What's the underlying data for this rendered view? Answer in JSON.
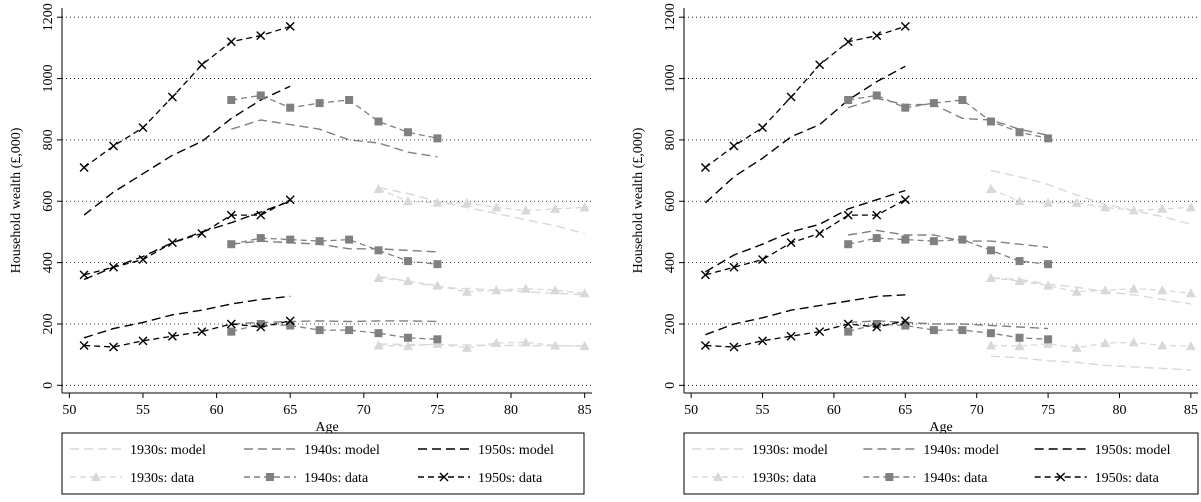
{
  "chart_data": [
    {
      "type": "line",
      "xlabel": "Age",
      "ylabel": "Household wealth (£,000)",
      "xlim": [
        49.5,
        85.5
      ],
      "ylim": [
        -25,
        1230
      ],
      "x_ticks": [
        50,
        55,
        60,
        65,
        70,
        75,
        80,
        85
      ],
      "y_ticks": [
        0,
        200,
        400,
        600,
        800,
        1000,
        1200
      ],
      "grid": "horizontal-dotted",
      "legend_position": "bottom",
      "series": [
        {
          "name": "1930s: model",
          "color": "#d8d8d8",
          "style": "model",
          "group": "low",
          "x": [
            71,
            73,
            75,
            77,
            79,
            81,
            83,
            85
          ],
          "y": [
            135,
            133,
            132,
            131,
            130,
            130,
            129,
            128
          ]
        },
        {
          "name": "1930s: model",
          "color": "#d8d8d8",
          "style": "model",
          "group": "mid",
          "x": [
            71,
            73,
            75,
            77,
            79,
            81,
            83,
            85
          ],
          "y": [
            355,
            340,
            320,
            315,
            310,
            305,
            300,
            295
          ]
        },
        {
          "name": "1930s: model",
          "color": "#d8d8d8",
          "style": "model",
          "group": "high",
          "x": [
            71,
            73,
            75,
            77,
            79,
            81,
            83,
            85
          ],
          "y": [
            645,
            625,
            600,
            580,
            560,
            540,
            520,
            495
          ]
        },
        {
          "name": "1940s: model",
          "color": "#808080",
          "style": "model",
          "group": "low",
          "x": [
            61,
            63,
            65,
            67,
            69,
            71,
            73,
            75
          ],
          "y": [
            200,
            205,
            208,
            210,
            208,
            210,
            210,
            208
          ]
        },
        {
          "name": "1940s: model",
          "color": "#808080",
          "style": "model",
          "group": "mid",
          "x": [
            61,
            63,
            65,
            67,
            69,
            71,
            73,
            75
          ],
          "y": [
            460,
            470,
            465,
            460,
            445,
            445,
            440,
            435
          ]
        },
        {
          "name": "1940s: model",
          "color": "#808080",
          "style": "model",
          "group": "high",
          "x": [
            61,
            63,
            65,
            67,
            69,
            71,
            73,
            75
          ],
          "y": [
            835,
            865,
            850,
            835,
            800,
            790,
            760,
            745
          ]
        },
        {
          "name": "1950s: model",
          "color": "#000000",
          "style": "model",
          "group": "low",
          "x": [
            51,
            53,
            55,
            57,
            59,
            61,
            63,
            65
          ],
          "y": [
            155,
            185,
            205,
            230,
            245,
            265,
            280,
            290
          ]
        },
        {
          "name": "1950s: model",
          "color": "#000000",
          "style": "model",
          "group": "mid",
          "x": [
            51,
            53,
            55,
            57,
            59,
            61,
            63,
            65
          ],
          "y": [
            345,
            385,
            420,
            465,
            500,
            530,
            565,
            600
          ]
        },
        {
          "name": "1950s: model",
          "color": "#000000",
          "style": "model",
          "group": "high",
          "x": [
            51,
            53,
            55,
            57,
            59,
            61,
            63,
            65
          ],
          "y": [
            555,
            630,
            690,
            750,
            795,
            870,
            930,
            975
          ]
        },
        {
          "name": "1930s: data",
          "color": "#d8d8d8",
          "style": "data",
          "marker": "triangle",
          "group": "low",
          "x": [
            71,
            73,
            75,
            77,
            79,
            81,
            83,
            85
          ],
          "y": [
            130,
            128,
            135,
            122,
            138,
            140,
            130,
            128
          ]
        },
        {
          "name": "1930s: data",
          "color": "#d8d8d8",
          "style": "data",
          "marker": "triangle",
          "group": "mid",
          "x": [
            71,
            73,
            75,
            77,
            79,
            81,
            83,
            85
          ],
          "y": [
            350,
            340,
            325,
            305,
            310,
            315,
            310,
            300
          ]
        },
        {
          "name": "1930s: data",
          "color": "#d8d8d8",
          "style": "data",
          "marker": "triangle",
          "group": "high",
          "x": [
            71,
            73,
            75,
            77,
            79,
            81,
            83,
            85
          ],
          "y": [
            640,
            600,
            595,
            595,
            580,
            570,
            575,
            580
          ]
        },
        {
          "name": "1940s: data",
          "color": "#808080",
          "style": "data",
          "marker": "square",
          "group": "low",
          "x": [
            61,
            63,
            65,
            67,
            69,
            71,
            73,
            75
          ],
          "y": [
            175,
            200,
            195,
            180,
            180,
            170,
            155,
            150
          ]
        },
        {
          "name": "1940s: data",
          "color": "#808080",
          "style": "data",
          "marker": "square",
          "group": "mid",
          "x": [
            61,
            63,
            65,
            67,
            69,
            71,
            73,
            75
          ],
          "y": [
            460,
            480,
            475,
            470,
            475,
            440,
            405,
            395
          ]
        },
        {
          "name": "1940s: data",
          "color": "#808080",
          "style": "data",
          "marker": "square",
          "group": "high",
          "x": [
            61,
            63,
            65,
            67,
            69,
            71,
            73,
            75
          ],
          "y": [
            930,
            945,
            905,
            920,
            930,
            860,
            825,
            805
          ]
        },
        {
          "name": "1950s: data",
          "color": "#000000",
          "style": "data",
          "marker": "x",
          "group": "low",
          "x": [
            51,
            53,
            55,
            57,
            59,
            61,
            63,
            65
          ],
          "y": [
            130,
            125,
            145,
            160,
            175,
            200,
            190,
            210
          ]
        },
        {
          "name": "1950s: data",
          "color": "#000000",
          "style": "data",
          "marker": "x",
          "group": "mid",
          "x": [
            51,
            53,
            55,
            57,
            59,
            61,
            63,
            65
          ],
          "y": [
            360,
            385,
            410,
            465,
            495,
            555,
            555,
            605
          ]
        },
        {
          "name": "1950s: data",
          "color": "#000000",
          "style": "data",
          "marker": "x",
          "group": "high",
          "x": [
            51,
            53,
            55,
            57,
            59,
            61,
            63,
            65
          ],
          "y": [
            710,
            780,
            840,
            940,
            1045,
            1120,
            1140,
            1170
          ]
        }
      ]
    },
    {
      "type": "line",
      "xlabel": "Age",
      "ylabel": "Household wealth (£,000)",
      "xlim": [
        49.5,
        85.5
      ],
      "ylim": [
        -25,
        1230
      ],
      "x_ticks": [
        50,
        55,
        60,
        65,
        70,
        75,
        80,
        85
      ],
      "y_ticks": [
        0,
        200,
        400,
        600,
        800,
        1000,
        1200
      ],
      "grid": "horizontal-dotted",
      "legend_position": "bottom",
      "series": [
        {
          "name": "1930s: model",
          "color": "#d8d8d8",
          "style": "model",
          "group": "low",
          "x": [
            71,
            73,
            75,
            77,
            79,
            81,
            83,
            85
          ],
          "y": [
            95,
            90,
            80,
            75,
            65,
            60,
            55,
            50
          ]
        },
        {
          "name": "1930s: model",
          "color": "#d8d8d8",
          "style": "model",
          "group": "mid",
          "x": [
            71,
            73,
            75,
            77,
            79,
            81,
            83,
            85
          ],
          "y": [
            350,
            345,
            330,
            320,
            305,
            295,
            280,
            265
          ]
        },
        {
          "name": "1930s: model",
          "color": "#d8d8d8",
          "style": "model",
          "group": "high",
          "x": [
            71,
            73,
            75,
            77,
            79,
            81,
            83,
            85
          ],
          "y": [
            700,
            680,
            655,
            620,
            590,
            570,
            550,
            525
          ]
        },
        {
          "name": "1940s: model",
          "color": "#808080",
          "style": "model",
          "group": "low",
          "x": [
            61,
            63,
            65,
            67,
            69,
            71,
            73,
            75
          ],
          "y": [
            205,
            210,
            205,
            200,
            200,
            195,
            190,
            185
          ]
        },
        {
          "name": "1940s: model",
          "color": "#808080",
          "style": "model",
          "group": "mid",
          "x": [
            61,
            63,
            65,
            67,
            69,
            71,
            73,
            75
          ],
          "y": [
            490,
            505,
            490,
            490,
            470,
            470,
            460,
            450
          ]
        },
        {
          "name": "1940s: model",
          "color": "#808080",
          "style": "model",
          "group": "high",
          "x": [
            61,
            63,
            65,
            67,
            69,
            71,
            73,
            75
          ],
          "y": [
            905,
            935,
            915,
            915,
            870,
            865,
            835,
            815
          ]
        },
        {
          "name": "1950s: model",
          "color": "#000000",
          "style": "model",
          "group": "low",
          "x": [
            51,
            53,
            55,
            57,
            59,
            61,
            63,
            65
          ],
          "y": [
            165,
            200,
            220,
            245,
            260,
            275,
            290,
            295
          ]
        },
        {
          "name": "1950s: model",
          "color": "#000000",
          "style": "model",
          "group": "mid",
          "x": [
            51,
            53,
            55,
            57,
            59,
            61,
            63,
            65
          ],
          "y": [
            370,
            425,
            460,
            500,
            525,
            575,
            605,
            635
          ]
        },
        {
          "name": "1950s: model",
          "color": "#000000",
          "style": "model",
          "group": "high",
          "x": [
            51,
            53,
            55,
            57,
            59,
            61,
            63,
            65
          ],
          "y": [
            595,
            680,
            740,
            810,
            850,
            930,
            990,
            1040
          ]
        },
        {
          "name": "1930s: data",
          "color": "#d8d8d8",
          "style": "data",
          "marker": "triangle",
          "group": "low",
          "x": [
            71,
            73,
            75,
            77,
            79,
            81,
            83,
            85
          ],
          "y": [
            130,
            128,
            135,
            122,
            138,
            140,
            130,
            128
          ]
        },
        {
          "name": "1930s: data",
          "color": "#d8d8d8",
          "style": "data",
          "marker": "triangle",
          "group": "mid",
          "x": [
            71,
            73,
            75,
            77,
            79,
            81,
            83,
            85
          ],
          "y": [
            350,
            340,
            325,
            305,
            310,
            315,
            310,
            300
          ]
        },
        {
          "name": "1930s: data",
          "color": "#d8d8d8",
          "style": "data",
          "marker": "triangle",
          "group": "high",
          "x": [
            71,
            73,
            75,
            77,
            79,
            81,
            83,
            85
          ],
          "y": [
            640,
            600,
            595,
            595,
            580,
            570,
            575,
            580
          ]
        },
        {
          "name": "1940s: data",
          "color": "#808080",
          "style": "data",
          "marker": "square",
          "group": "low",
          "x": [
            61,
            63,
            65,
            67,
            69,
            71,
            73,
            75
          ],
          "y": [
            175,
            200,
            195,
            180,
            180,
            170,
            155,
            150
          ]
        },
        {
          "name": "1940s: data",
          "color": "#808080",
          "style": "data",
          "marker": "square",
          "group": "mid",
          "x": [
            61,
            63,
            65,
            67,
            69,
            71,
            73,
            75
          ],
          "y": [
            460,
            480,
            475,
            470,
            475,
            440,
            405,
            395
          ]
        },
        {
          "name": "1940s: data",
          "color": "#808080",
          "style": "data",
          "marker": "square",
          "group": "high",
          "x": [
            61,
            63,
            65,
            67,
            69,
            71,
            73,
            75
          ],
          "y": [
            930,
            945,
            905,
            920,
            930,
            860,
            825,
            805
          ]
        },
        {
          "name": "1950s: data",
          "color": "#000000",
          "style": "data",
          "marker": "x",
          "group": "low",
          "x": [
            51,
            53,
            55,
            57,
            59,
            61,
            63,
            65
          ],
          "y": [
            130,
            125,
            145,
            160,
            175,
            200,
            190,
            210
          ]
        },
        {
          "name": "1950s: data",
          "color": "#000000",
          "style": "data",
          "marker": "x",
          "group": "mid",
          "x": [
            51,
            53,
            55,
            57,
            59,
            61,
            63,
            65
          ],
          "y": [
            360,
            385,
            410,
            465,
            495,
            555,
            555,
            605
          ]
        },
        {
          "name": "1950s: data",
          "color": "#000000",
          "style": "data",
          "marker": "x",
          "group": "high",
          "x": [
            51,
            53,
            55,
            57,
            59,
            61,
            63,
            65
          ],
          "y": [
            710,
            780,
            840,
            940,
            1045,
            1120,
            1140,
            1170
          ]
        }
      ]
    }
  ],
  "legend": {
    "items": [
      {
        "label": "1930s: model",
        "color": "#d8d8d8",
        "style": "model"
      },
      {
        "label": "1940s: model",
        "color": "#808080",
        "style": "model"
      },
      {
        "label": "1950s: model",
        "color": "#000000",
        "style": "model"
      },
      {
        "label": "1930s: data",
        "color": "#d8d8d8",
        "style": "data",
        "marker": "triangle"
      },
      {
        "label": "1940s: data",
        "color": "#808080",
        "style": "data",
        "marker": "square"
      },
      {
        "label": "1950s: data",
        "color": "#000000",
        "style": "data",
        "marker": "x"
      }
    ]
  }
}
